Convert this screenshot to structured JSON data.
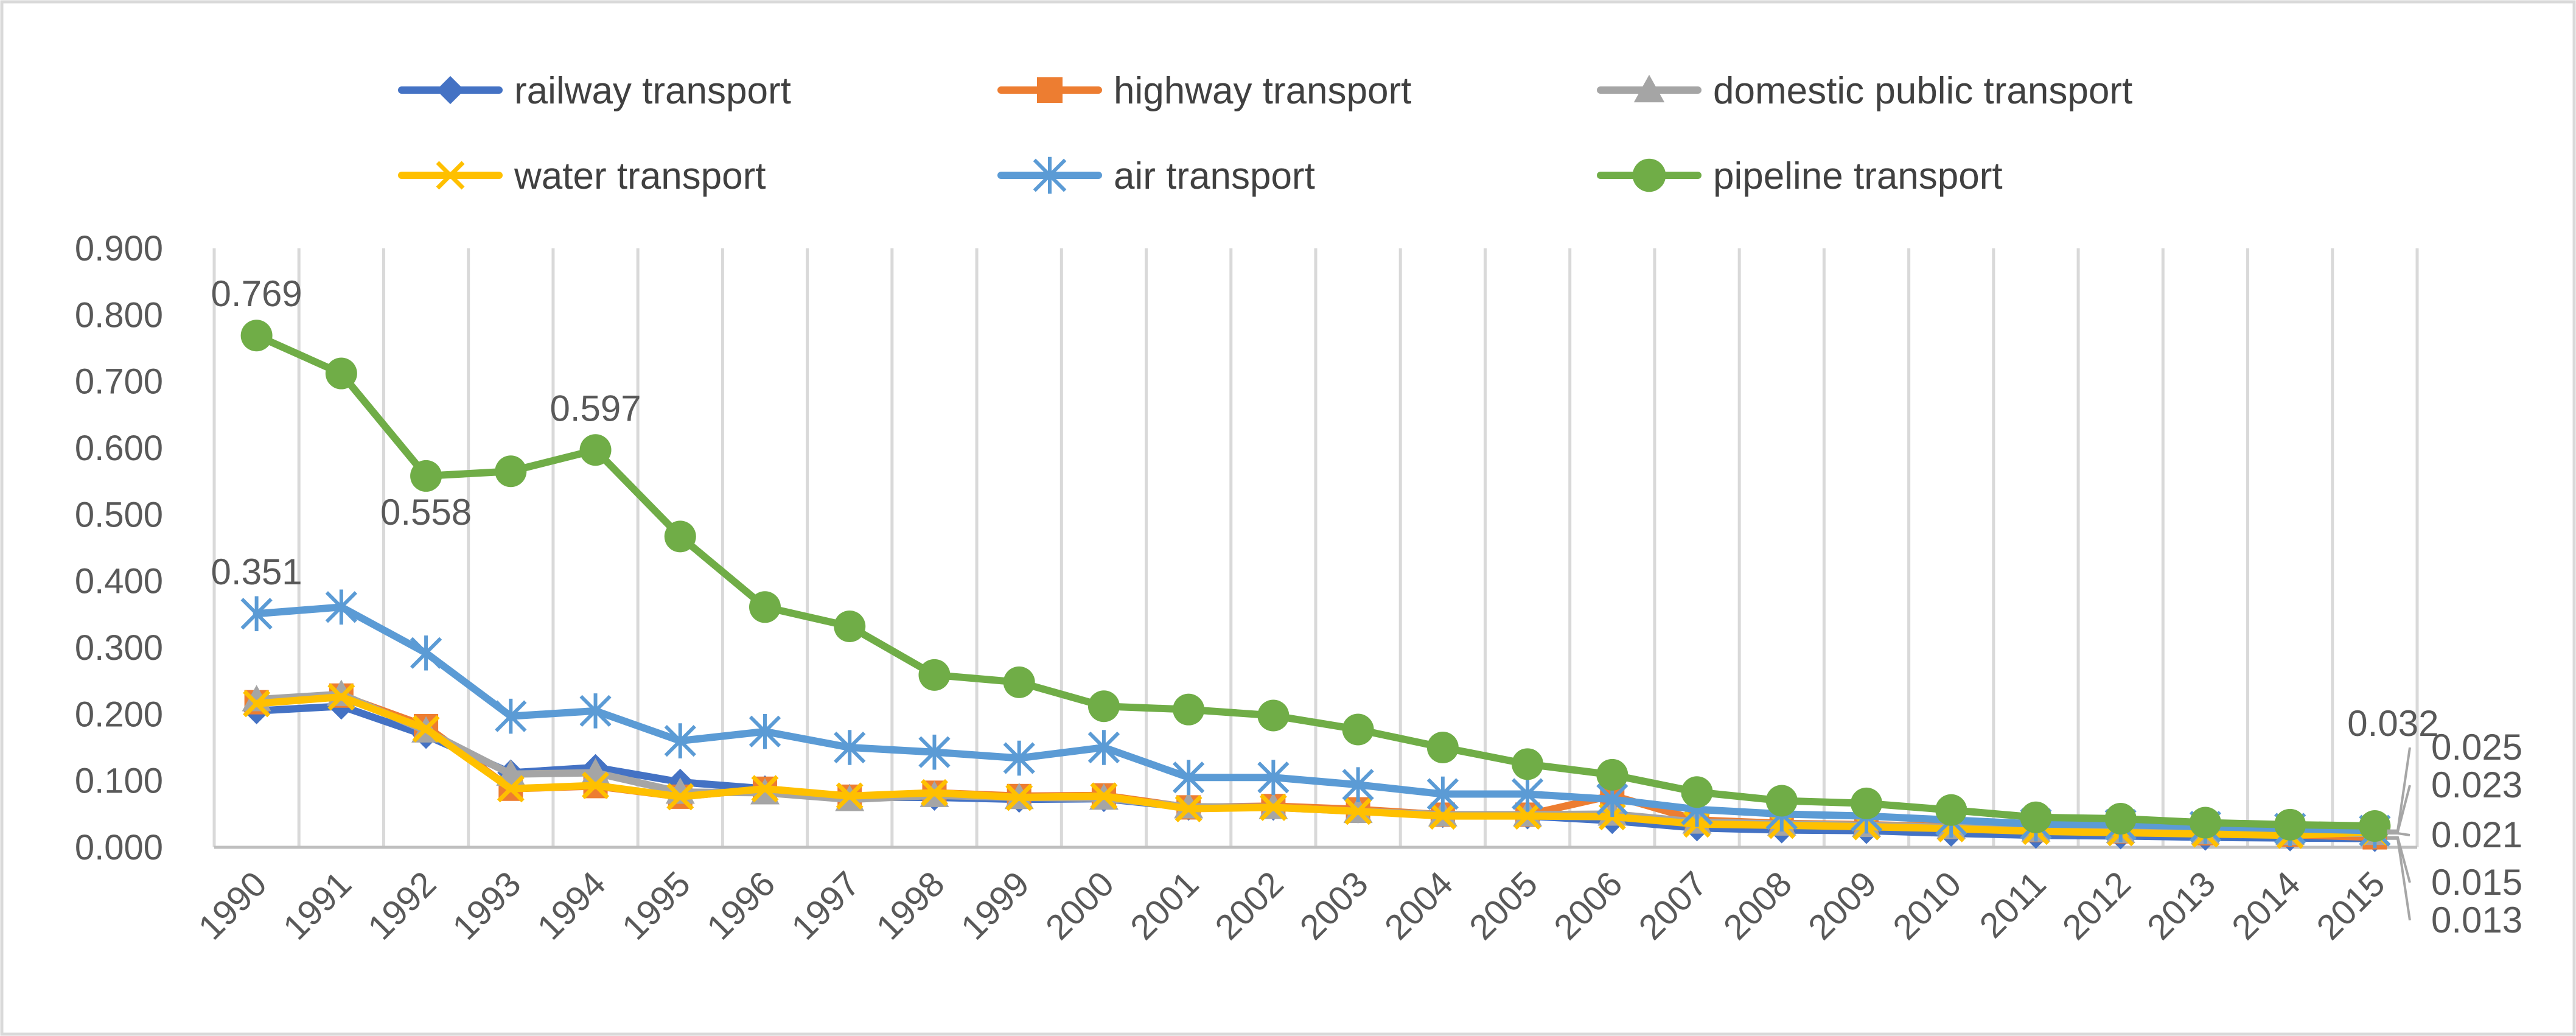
{
  "chart_data": {
    "type": "line",
    "title": "",
    "xlabel": "",
    "ylabel": "",
    "ylim": [
      0,
      0.9
    ],
    "y_ticks": [
      "0.000",
      "0.100",
      "0.200",
      "0.300",
      "0.400",
      "0.500",
      "0.600",
      "0.700",
      "0.800",
      "0.900"
    ],
    "y_tick_values": [
      0,
      0.1,
      0.2,
      0.3,
      0.4,
      0.5,
      0.6,
      0.7,
      0.8,
      0.9
    ],
    "grid": "vertical",
    "legend_position": "top",
    "categories": [
      "1990",
      "1991",
      "1992",
      "1993",
      "1994",
      "1995",
      "1996",
      "1997",
      "1998",
      "1999",
      "2000",
      "2001",
      "2002",
      "2003",
      "2004",
      "2005",
      "2006",
      "2007",
      "2008",
      "2009",
      "2010",
      "2011",
      "2012",
      "2013",
      "2014",
      "2015"
    ],
    "series": [
      {
        "name": "railway transport",
        "color": "#4472C4",
        "marker": "diamond",
        "values": [
          0.205,
          0.212,
          0.168,
          0.112,
          0.12,
          0.098,
          0.088,
          0.075,
          0.075,
          0.072,
          0.073,
          0.06,
          0.06,
          0.056,
          0.049,
          0.047,
          0.04,
          0.029,
          0.026,
          0.025,
          0.021,
          0.018,
          0.017,
          0.015,
          0.014,
          0.013
        ]
      },
      {
        "name": "highway transport",
        "color": "#ED7D31",
        "marker": "square",
        "values": [
          0.218,
          0.228,
          0.182,
          0.088,
          0.092,
          0.076,
          0.088,
          0.076,
          0.082,
          0.077,
          0.078,
          0.06,
          0.062,
          0.057,
          0.049,
          0.049,
          0.078,
          0.041,
          0.036,
          0.034,
          0.031,
          0.026,
          0.024,
          0.021,
          0.019,
          0.015
        ]
      },
      {
        "name": "domestic public transport",
        "color": "#A5A5A5",
        "marker": "triangle",
        "values": [
          0.222,
          0.23,
          0.175,
          0.11,
          0.112,
          0.083,
          0.082,
          0.072,
          0.078,
          0.075,
          0.074,
          0.061,
          0.06,
          0.054,
          0.049,
          0.049,
          0.05,
          0.038,
          0.035,
          0.033,
          0.03,
          0.026,
          0.024,
          0.022,
          0.021,
          0.021
        ]
      },
      {
        "name": "water transport",
        "color": "#FFC000",
        "marker": "x",
        "values": [
          0.216,
          0.226,
          0.178,
          0.088,
          0.093,
          0.076,
          0.088,
          0.077,
          0.082,
          0.075,
          0.077,
          0.058,
          0.06,
          0.054,
          0.047,
          0.047,
          0.046,
          0.035,
          0.033,
          0.031,
          0.028,
          0.024,
          0.022,
          0.02,
          0.018,
          0.023
        ]
      },
      {
        "name": "air transport",
        "color": "#5B9BD5",
        "marker": "asterisk",
        "values": [
          0.351,
          0.361,
          0.292,
          0.197,
          0.205,
          0.16,
          0.174,
          0.15,
          0.143,
          0.134,
          0.15,
          0.105,
          0.105,
          0.094,
          0.08,
          0.08,
          0.072,
          0.057,
          0.05,
          0.047,
          0.041,
          0.035,
          0.034,
          0.031,
          0.028,
          0.025
        ]
      },
      {
        "name": "pipeline transport",
        "color": "#70AD47",
        "marker": "circle",
        "values": [
          0.769,
          0.712,
          0.558,
          0.565,
          0.597,
          0.467,
          0.361,
          0.332,
          0.259,
          0.248,
          0.212,
          0.207,
          0.198,
          0.177,
          0.15,
          0.125,
          0.109,
          0.083,
          0.07,
          0.066,
          0.056,
          0.045,
          0.043,
          0.037,
          0.034,
          0.032
        ]
      }
    ],
    "data_labels": [
      {
        "series": "pipeline transport",
        "category": "1990",
        "text": "0.769",
        "anchor": "above"
      },
      {
        "series": "pipeline transport",
        "category": "1992",
        "text": "0.558",
        "anchor": "below"
      },
      {
        "series": "pipeline transport",
        "category": "1994",
        "text": "0.597",
        "anchor": "above"
      },
      {
        "series": "air transport",
        "category": "1990",
        "text": "0.351",
        "anchor": "above"
      },
      {
        "series": "pipeline transport",
        "category": "2015",
        "text": "0.032",
        "anchor": "above"
      }
    ],
    "end_callouts": [
      {
        "series": "air transport",
        "text": "0.025",
        "slot": 0
      },
      {
        "series": "water transport",
        "text": "0.023",
        "slot": 1
      },
      {
        "series": "domestic public transport",
        "text": "0.021",
        "slot": 2
      },
      {
        "series": "highway transport",
        "text": "0.015",
        "slot": 3
      },
      {
        "series": "railway transport",
        "text": "0.013",
        "slot": 4
      }
    ]
  }
}
